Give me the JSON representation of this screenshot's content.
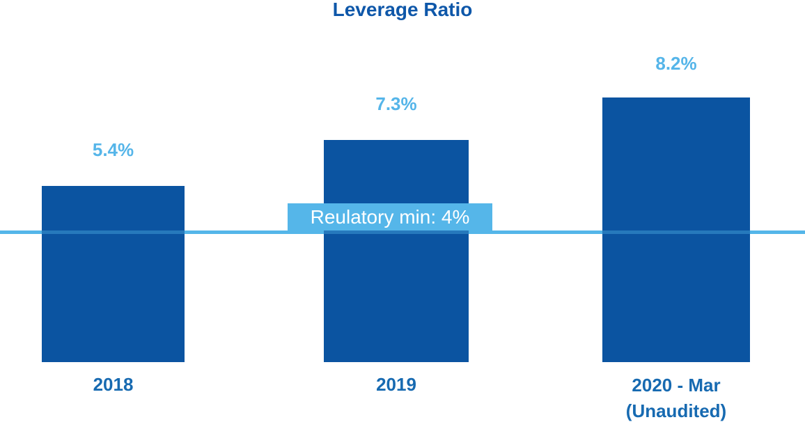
{
  "chart_data": {
    "type": "bar",
    "title": "Leverage Ratio",
    "categories": [
      "2018",
      "2019",
      "2020 - Mar (Unaudited)"
    ],
    "values": [
      5.4,
      7.3,
      8.2
    ],
    "value_labels": [
      "5.4%",
      "7.3%",
      "8.2%"
    ],
    "unit": "%",
    "reference_line": {
      "value": 4,
      "label": "Reulatory min: 4%"
    },
    "category_display": [
      [
        "2018"
      ],
      [
        "2019"
      ],
      [
        "2020 - Mar",
        "(Unaudited)"
      ]
    ],
    "ylim": [
      0,
      9
    ],
    "grid": false,
    "legend": false,
    "colors": {
      "bar": "#0B54A1",
      "accent_light": "#55B6E9",
      "title_text": "#0E57A9",
      "category_text": "#176AB1",
      "value_text": "#55B5E9",
      "reference_text": "#FFFFFF",
      "background": "#FFFFFF"
    }
  }
}
